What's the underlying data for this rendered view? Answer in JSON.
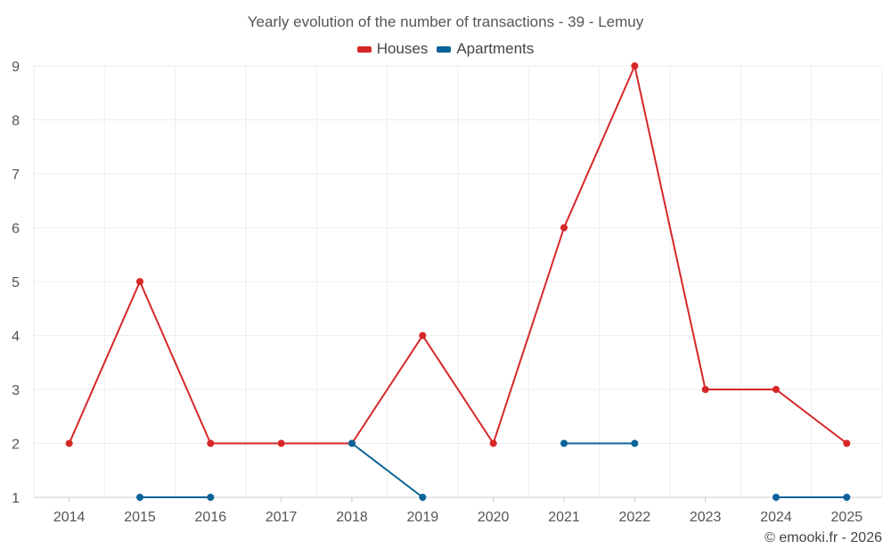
{
  "colors": {
    "houses": "#d62728",
    "apartments": "#0b6399",
    "grid": "#eeeeee",
    "axis": "#cccccc",
    "text": "#555555"
  },
  "credit": "© emooki.fr - 2026",
  "chart_data": {
    "type": "line",
    "title": "Yearly evolution of the number of transactions - 39 - Lemuy",
    "xlabel": "",
    "ylabel": "",
    "categories": [
      "2014",
      "2015",
      "2016",
      "2017",
      "2018",
      "2019",
      "2020",
      "2021",
      "2022",
      "2023",
      "2024",
      "2025"
    ],
    "ylim": [
      1,
      9
    ],
    "yticks": [
      1,
      2,
      3,
      4,
      5,
      6,
      7,
      8,
      9
    ],
    "grid": true,
    "legend_position": "top-center",
    "series": [
      {
        "name": "Houses",
        "color_key": "houses",
        "values": [
          2,
          5,
          2,
          2,
          2,
          4,
          2,
          6,
          9,
          3,
          3,
          2
        ]
      },
      {
        "name": "Apartments",
        "color_key": "apartments",
        "values": [
          null,
          1,
          1,
          null,
          2,
          1,
          null,
          2,
          2,
          null,
          1,
          1
        ]
      }
    ]
  }
}
